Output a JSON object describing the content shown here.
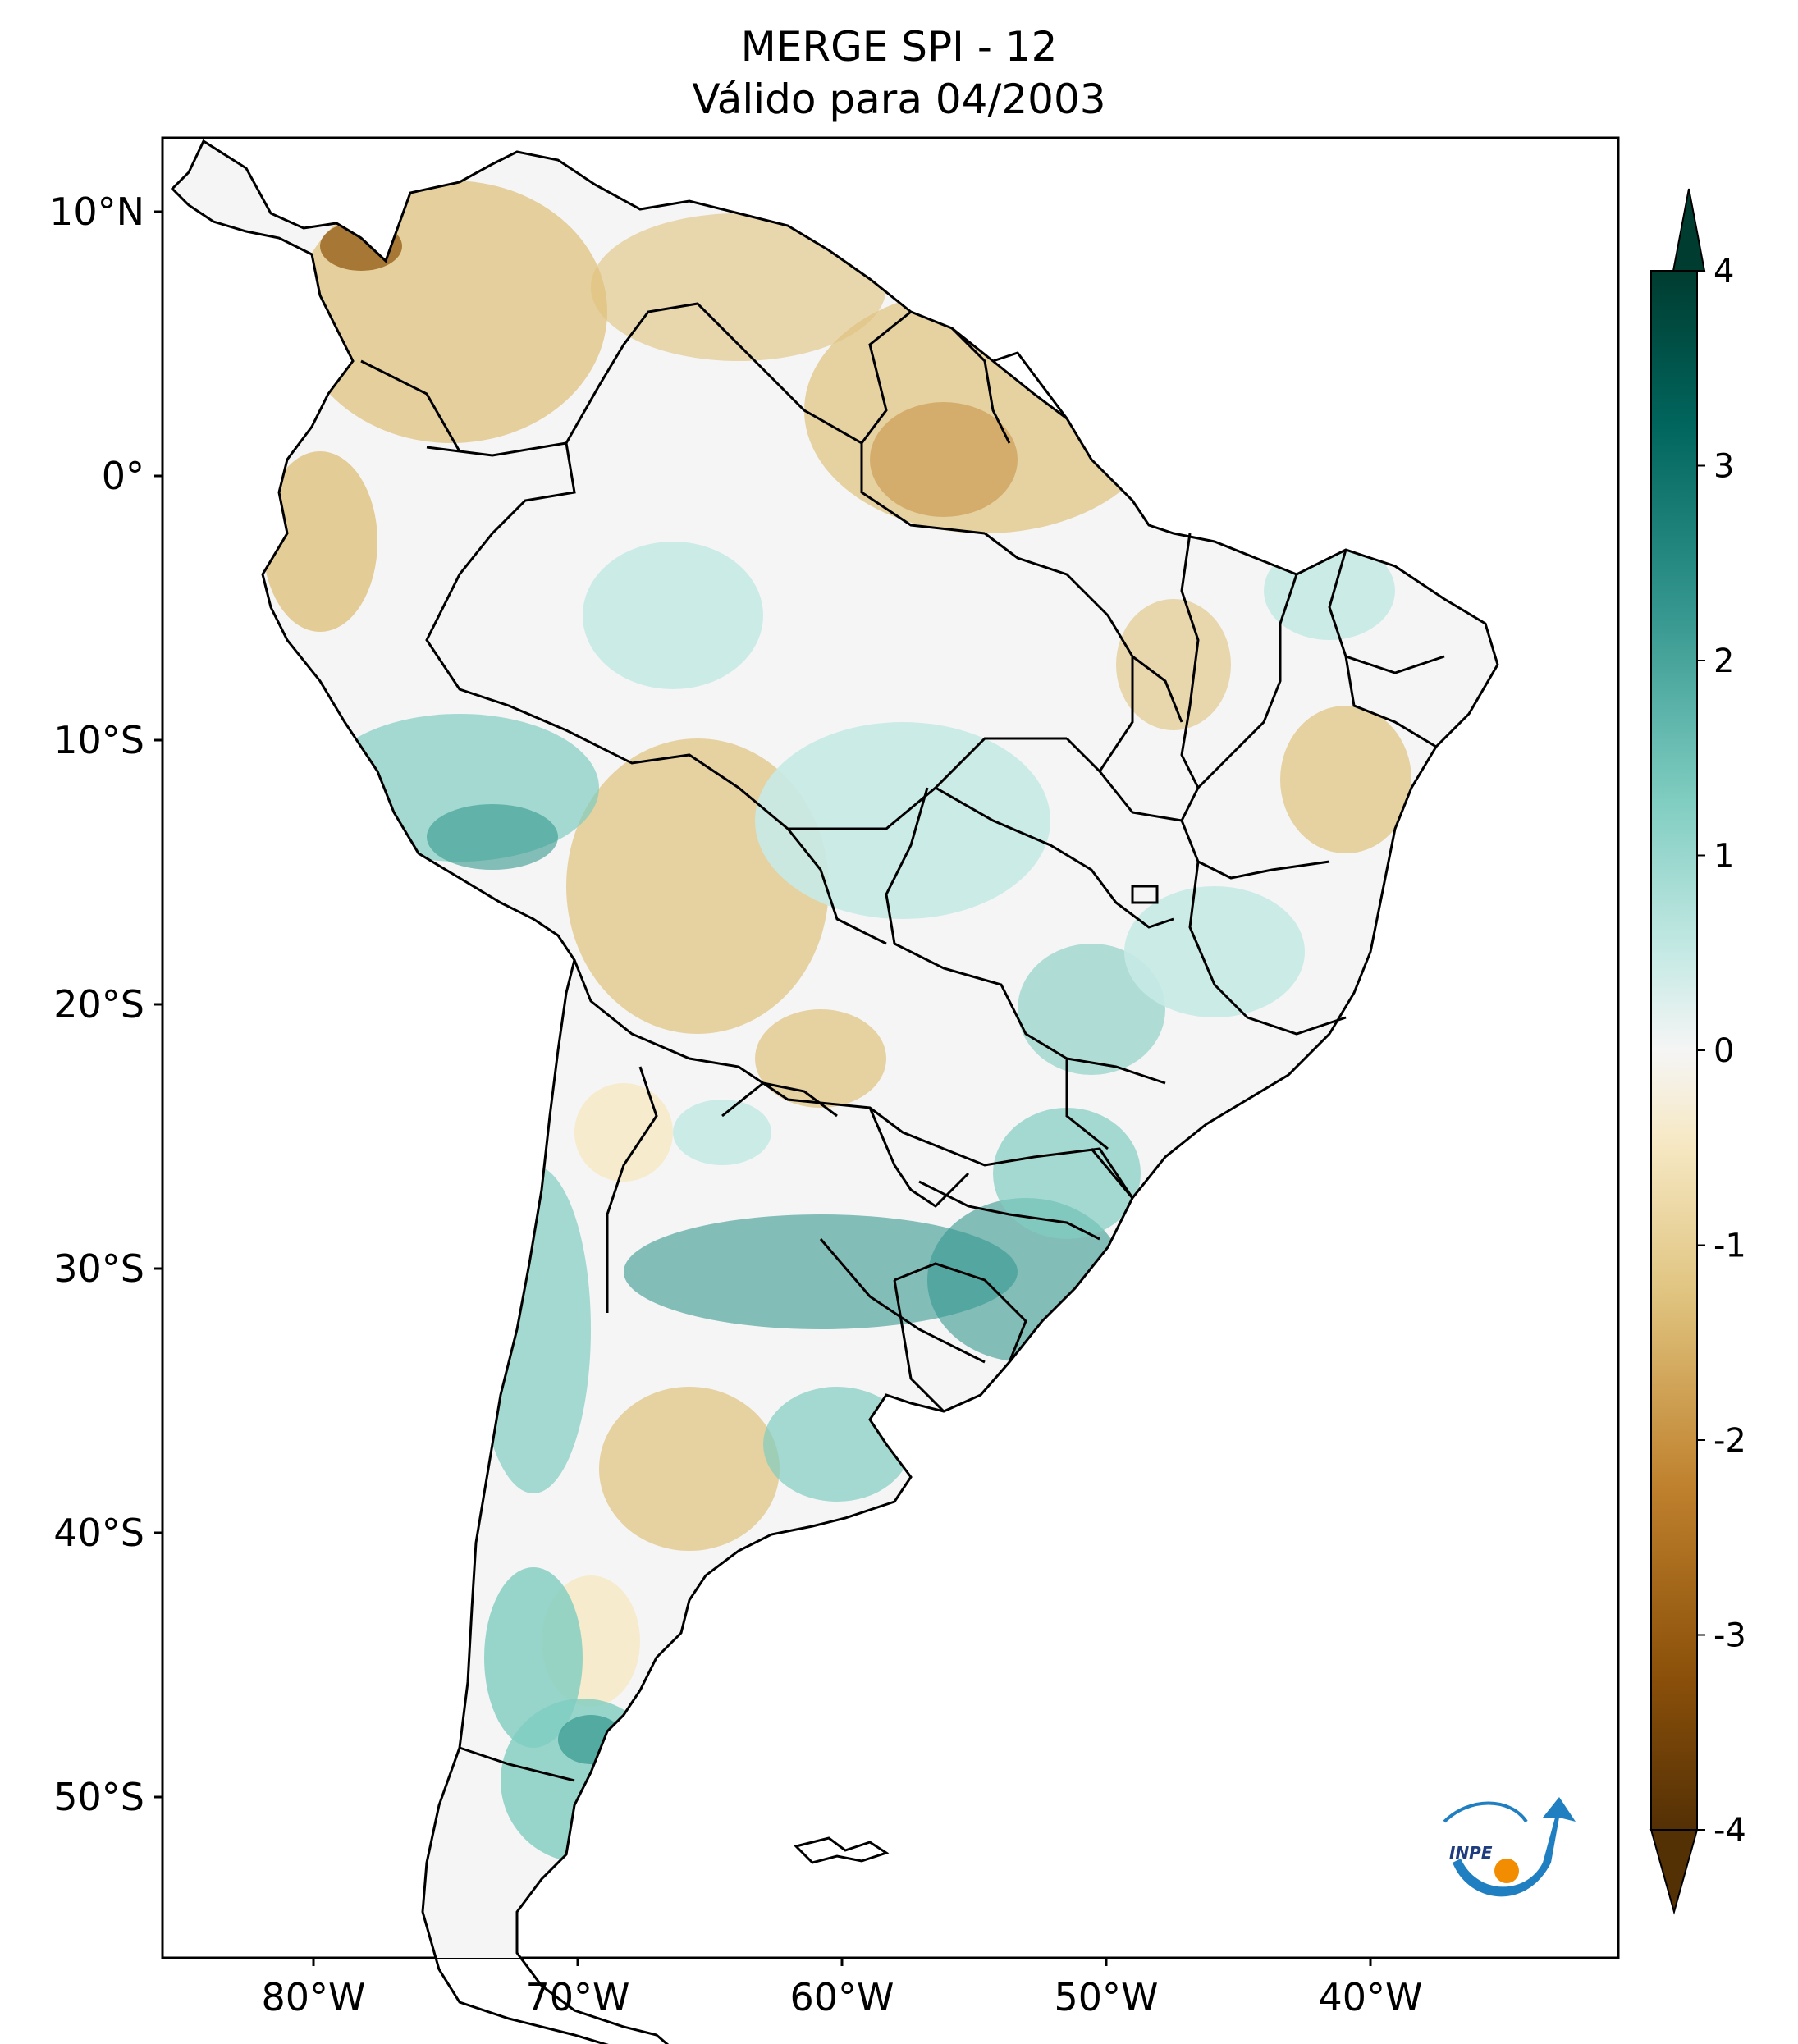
{
  "title": {
    "line1": "MERGE   SPI - 12",
    "line2": "Válido para 04/2003"
  },
  "map": {
    "region": "South America",
    "lon_range": [
      -85,
      -30
    ],
    "lat_range": [
      -56,
      13
    ],
    "lat_ticks": [
      {
        "value": 10,
        "label": "10°N"
      },
      {
        "value": 0,
        "label": "0°"
      },
      {
        "value": -10,
        "label": "10°S"
      },
      {
        "value": -20,
        "label": "20°S"
      },
      {
        "value": -30,
        "label": "30°S"
      },
      {
        "value": -40,
        "label": "40°S"
      },
      {
        "value": -50,
        "label": "50°S"
      }
    ],
    "lon_ticks": [
      {
        "value": -80,
        "label": "80°W"
      },
      {
        "value": -70,
        "label": "70°W"
      },
      {
        "value": -60,
        "label": "60°W"
      },
      {
        "value": -50,
        "label": "50°W"
      },
      {
        "value": -40,
        "label": "40°W"
      }
    ]
  },
  "colorbar": {
    "range": [
      -4,
      4
    ],
    "extend": "both",
    "ticks": [
      {
        "value": 4,
        "label": "4"
      },
      {
        "value": 3,
        "label": "3"
      },
      {
        "value": 2,
        "label": "2"
      },
      {
        "value": 1,
        "label": "1"
      },
      {
        "value": 0,
        "label": "0"
      },
      {
        "value": -1,
        "label": "-1"
      },
      {
        "value": -2,
        "label": "-2"
      },
      {
        "value": -3,
        "label": "-3"
      },
      {
        "value": -4,
        "label": "-4"
      }
    ],
    "colors": {
      "dry_extreme": "#543005",
      "dry_strong": "#8c510a",
      "dry_moderate": "#bf812d",
      "dry_mild": "#dfc27d",
      "dry_light": "#f6e8c3",
      "neutral": "#f5f5f5",
      "wet_light": "#c7eae5",
      "wet_mild": "#80cdc1",
      "wet_moderate": "#35978f",
      "wet_strong": "#01665e",
      "wet_extreme": "#003c30"
    }
  },
  "logo": {
    "text": "INPE",
    "colors": {
      "arc": "#1f7fc1",
      "dot": "#f28c00"
    }
  }
}
